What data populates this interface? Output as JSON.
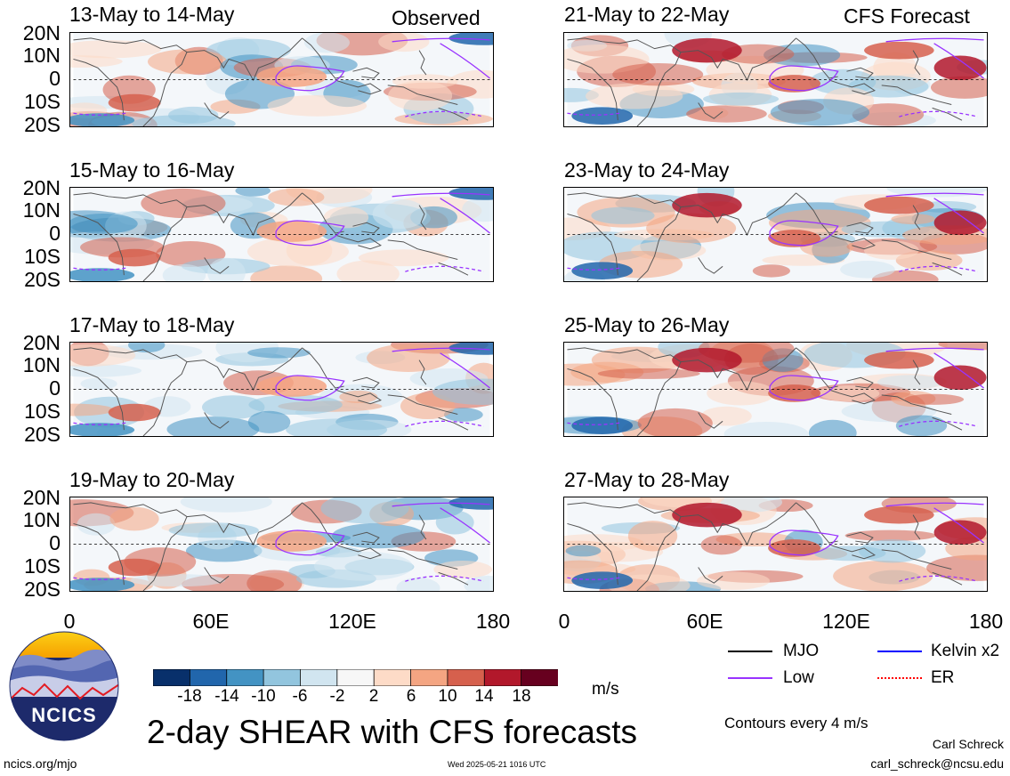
{
  "chart_data": {
    "type": "heatmap",
    "title": "2-day SHEAR with CFS forecasts",
    "units": "m/s",
    "contour_note": "Contours every 4 m/s",
    "lat_ticks": [
      "20N",
      "10N",
      "0",
      "10S",
      "20S"
    ],
    "lon_ticks": [
      "0",
      "60E",
      "120E",
      "180"
    ],
    "columns": [
      {
        "label": "Observed",
        "panels": [
          "13-May to 14-May",
          "15-May to 16-May",
          "17-May to 18-May",
          "19-May to 20-May"
        ]
      },
      {
        "label": "CFS Forecast",
        "panels": [
          "21-May to 22-May",
          "23-May to 24-May",
          "25-May to 26-May",
          "27-May to 28-May"
        ]
      }
    ],
    "colorbar": {
      "labels": [
        "-18",
        "-14",
        "-10",
        "-6",
        "-2",
        "2",
        "6",
        "10",
        "14",
        "18"
      ],
      "colors": [
        "#08306b",
        "#2166ac",
        "#4393c3",
        "#92c5de",
        "#d1e5f0",
        "#f7f7f7",
        "#fddbc7",
        "#f4a582",
        "#d6604d",
        "#b2182b",
        "#67001f"
      ]
    },
    "legend": [
      {
        "label": "MJO",
        "color": "#000000",
        "style": "solid"
      },
      {
        "label": "Kelvin x2",
        "color": "#0000ff",
        "style": "solid"
      },
      {
        "label": "Low",
        "color": "#9933ff",
        "style": "solid"
      },
      {
        "label": "ER",
        "color": "#ff0000",
        "style": "dotted"
      }
    ]
  },
  "footer": {
    "logo_text": "NCICS",
    "url": "ncics.org/mjo",
    "timestamp": "Wed 2025-05-21 1016 UTC",
    "author": "Carl Schreck",
    "email": "carl_schreck@ncsu.edu"
  }
}
